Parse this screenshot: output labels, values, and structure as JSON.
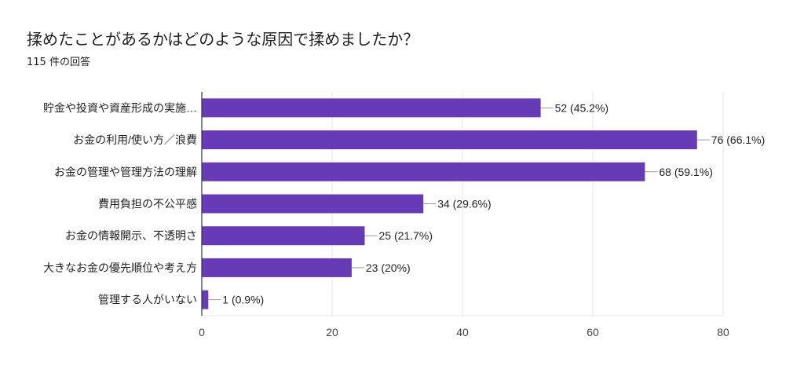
{
  "header": {
    "title": "揉めたことがあるかはどのような原因で揉めましたか？",
    "subtitle": "115 件の回答"
  },
  "chart_data": {
    "type": "bar",
    "orientation": "horizontal",
    "categories": [
      "貯金や投資や資産形成の実施…",
      "お金の利用/使い方／浪費",
      "お金の管理や管理方法の理解",
      "費用負担の不公平感",
      "お金の情報開示、不透明さ",
      "大きなお金の優先順位や考え方",
      "管理する人がいない"
    ],
    "values": [
      52,
      76,
      68,
      34,
      25,
      23,
      1
    ],
    "data_labels": [
      "52 (45.2%)",
      "76 (66.1%)",
      "68 (59.1%)",
      "34 (29.6%)",
      "25 (21.7%)",
      "23 (20%)",
      "1 (0.9%)"
    ],
    "xlim": [
      0,
      80
    ],
    "xticks": [
      "0",
      "20",
      "40",
      "60",
      "80"
    ],
    "grid": true,
    "bar_color": "#673ab7"
  }
}
